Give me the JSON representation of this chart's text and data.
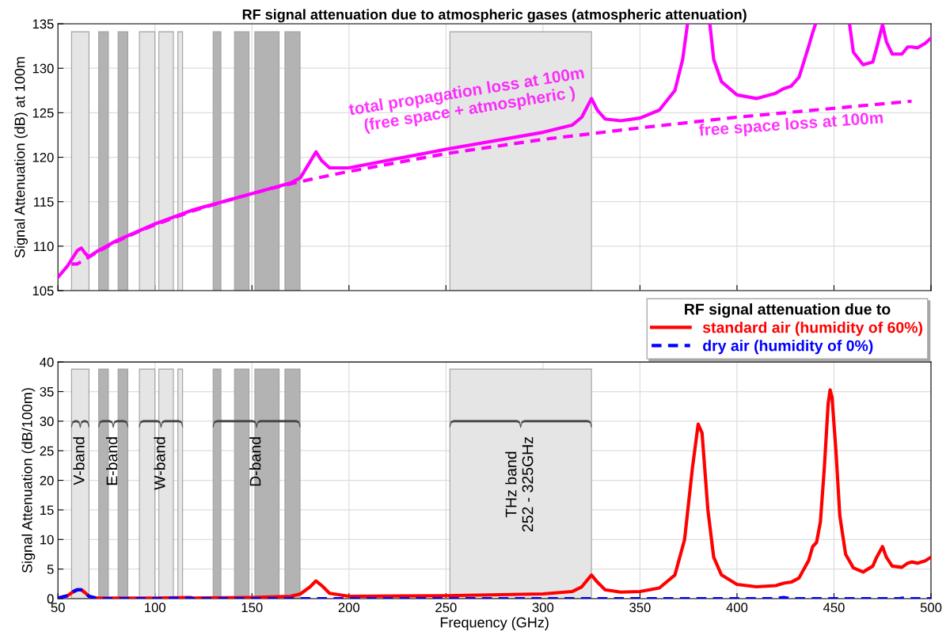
{
  "chart_data": [
    {
      "type": "line",
      "title": "RF signal attenuation due to atmospheric gases (atmospheric attenuation)",
      "ylabel": "Signal Attenuation (dB) at 100m",
      "xlim": [
        50,
        500
      ],
      "xticks": [
        50,
        100,
        150,
        200,
        250,
        300,
        350,
        400,
        450,
        500
      ],
      "ylim": [
        105,
        135
      ],
      "yticks": [
        105,
        110,
        115,
        120,
        125,
        130,
        135
      ],
      "grid": true,
      "tick_labels": "y",
      "legend": false,
      "bands": [
        {
          "axis": "x",
          "from": 57,
          "to": 66,
          "color": "#e5e5e5"
        },
        {
          "axis": "x",
          "from": 71,
          "to": 76,
          "color": "#b3b3b3"
        },
        {
          "axis": "x",
          "from": 81,
          "to": 86,
          "color": "#b3b3b3"
        },
        {
          "axis": "x",
          "from": 92,
          "to": 100,
          "color": "#e5e5e5"
        },
        {
          "axis": "x",
          "from": 102,
          "to": 109.5,
          "color": "#e5e5e5"
        },
        {
          "axis": "x",
          "from": 111.8,
          "to": 114.25,
          "color": "#e5e5e5"
        },
        {
          "axis": "x",
          "from": 130,
          "to": 134,
          "color": "#b3b3b3"
        },
        {
          "axis": "x",
          "from": 141,
          "to": 148.5,
          "color": "#b3b3b3"
        },
        {
          "axis": "x",
          "from": 151.5,
          "to": 164,
          "color": "#b3b3b3"
        },
        {
          "axis": "x",
          "from": 167,
          "to": 174.8,
          "color": "#b3b3b3"
        },
        {
          "axis": "x",
          "from": 252,
          "to": 325,
          "color": "#e5e5e5"
        }
      ],
      "series": [
        {
          "name": "total propagation loss at 100m\n(free space + atmospheric )",
          "color": "#ff00ff",
          "line_style": "solid",
          "x": [
            50,
            55,
            60,
            62,
            64,
            66,
            70,
            80,
            100,
            120,
            150,
            170,
            175,
            180,
            183,
            186,
            190,
            200,
            250,
            300,
            315,
            320,
            325,
            328,
            332,
            340,
            350,
            360,
            368,
            372,
            374.5,
            380,
            386,
            388,
            392,
            400,
            410,
            420,
            424,
            428,
            432,
            437,
            439,
            440.5,
            450,
            458,
            460,
            465,
            470,
            472,
            475,
            477,
            480,
            485,
            488,
            490,
            493,
            497,
            500
          ],
          "values": [
            106.5,
            107.8,
            109.5,
            109.8,
            109.2,
            108.8,
            109.4,
            110.6,
            112.5,
            114.1,
            115.9,
            117.1,
            117.7,
            119.5,
            120.6,
            119.6,
            118.8,
            118.8,
            120.9,
            122.8,
            123.6,
            124.5,
            126.6,
            125.3,
            124.3,
            124.1,
            124.4,
            125.3,
            127.5,
            131,
            135,
            null,
            135,
            131,
            128.5,
            127.0,
            126.6,
            127.2,
            127.7,
            128.0,
            129,
            132.5,
            134.0,
            135,
            null,
            135,
            131.8,
            130.4,
            130.7,
            132.3,
            134.9,
            133,
            131.6,
            131.6,
            132.4,
            132.4,
            132.3,
            132.8,
            133.4
          ]
        },
        {
          "name": "free space loss at 100m",
          "color": "#ff00ff",
          "line_style": "dashed",
          "x": [
            57,
            60,
            70,
            80,
            90,
            100,
            120,
            140,
            160,
            180,
            200,
            250,
            300,
            350,
            400,
            450,
            490
          ],
          "values": [
            108.0,
            108.0,
            109.3,
            110.5,
            111.5,
            112.4,
            114.0,
            115.3,
            116.5,
            117.5,
            118.4,
            120.4,
            122.0,
            123.3,
            124.5,
            125.5,
            126.3
          ]
        }
      ]
    },
    {
      "type": "line",
      "xlabel": "Frequency (GHz)",
      "ylabel": "Signal Attenuation (dB/100m)",
      "xlim": [
        50,
        500
      ],
      "xticks": [
        50,
        100,
        150,
        200,
        250,
        300,
        350,
        400,
        450,
        500
      ],
      "ylim": [
        0,
        40
      ],
      "yticks": [
        0,
        5,
        10,
        15,
        20,
        25,
        30,
        35,
        40
      ],
      "grid": true,
      "legend": "top right",
      "legend_title": "RF signal attenuation due to",
      "bands": [
        {
          "axis": "x",
          "from": 57,
          "to": 66,
          "color": "#e5e5e5",
          "label": "V-band"
        },
        {
          "axis": "x",
          "from": 71,
          "to": 76,
          "color": "#b3b3b3",
          "label": "E-band"
        },
        {
          "axis": "x",
          "from": 81,
          "to": 86,
          "color": "#b3b3b3"
        },
        {
          "axis": "x",
          "from": 92,
          "to": 100,
          "color": "#e5e5e5",
          "label": "W-band"
        },
        {
          "axis": "x",
          "from": 102,
          "to": 109.5,
          "color": "#e5e5e5"
        },
        {
          "axis": "x",
          "from": 111.8,
          "to": 114.25,
          "color": "#e5e5e5"
        },
        {
          "axis": "x",
          "from": 130,
          "to": 134,
          "color": "#b3b3b3",
          "label": "D-band"
        },
        {
          "axis": "x",
          "from": 141,
          "to": 148.5,
          "color": "#b3b3b3"
        },
        {
          "axis": "x",
          "from": 151.5,
          "to": 164,
          "color": "#b3b3b3"
        },
        {
          "axis": "x",
          "from": 167,
          "to": 174.8,
          "color": "#b3b3b3"
        },
        {
          "axis": "x",
          "from": 252,
          "to": 325,
          "color": "#e5e5e5",
          "label": "THz band\n252 - 325GHz"
        }
      ],
      "series": [
        {
          "name": "standard air (humidity of 60%)",
          "color": "#ff0000",
          "line_style": "solid",
          "x": [
            50,
            55,
            58,
            60,
            62,
            64,
            66,
            70,
            80,
            100,
            118,
            120,
            150,
            170,
            175,
            180,
            183,
            186,
            190,
            200,
            250,
            300,
            315,
            320,
            325,
            328,
            332,
            340,
            350,
            360,
            368,
            373,
            377,
            380,
            382,
            385,
            388,
            392,
            400,
            410,
            420,
            424,
            428,
            432,
            437,
            439,
            441,
            443,
            445,
            447,
            448,
            449,
            451,
            453,
            456,
            460,
            465,
            470,
            472,
            475,
            477,
            480,
            485,
            488,
            490,
            493,
            497,
            500
          ],
          "values": [
            0.1,
            0.5,
            1.2,
            1.5,
            1.5,
            1.0,
            0.4,
            0.1,
            0.1,
            0.1,
            0.2,
            0.1,
            0.2,
            0.4,
            0.8,
            2.0,
            3.0,
            2.2,
            0.9,
            0.4,
            0.5,
            0.8,
            1.2,
            2.0,
            4.0,
            2.8,
            1.5,
            1.1,
            1.2,
            1.8,
            4,
            10,
            22,
            29.5,
            28,
            15,
            7,
            4,
            2.4,
            2.0,
            2.2,
            2.6,
            2.8,
            3.5,
            6.5,
            8.8,
            9.5,
            13,
            22,
            33,
            35.3,
            34,
            25,
            14,
            7.5,
            5.2,
            4.5,
            5.5,
            7,
            8.8,
            7,
            5.5,
            5.3,
            6.0,
            6.2,
            6.0,
            6.4,
            7.0
          ]
        },
        {
          "name": "dry air (humidity of 0%)",
          "color": "#0000ff",
          "line_style": "dashed",
          "x": [
            50,
            55,
            58,
            60,
            62,
            64,
            66,
            70,
            100,
            118,
            120,
            200,
            300,
            420,
            424,
            428,
            484,
            487,
            490,
            500
          ],
          "values": [
            0.1,
            0.5,
            1.2,
            1.5,
            1.5,
            1.0,
            0.4,
            0,
            0,
            0.1,
            0,
            0,
            0,
            0,
            0.2,
            0,
            0,
            0.2,
            0,
            0
          ]
        }
      ]
    }
  ]
}
